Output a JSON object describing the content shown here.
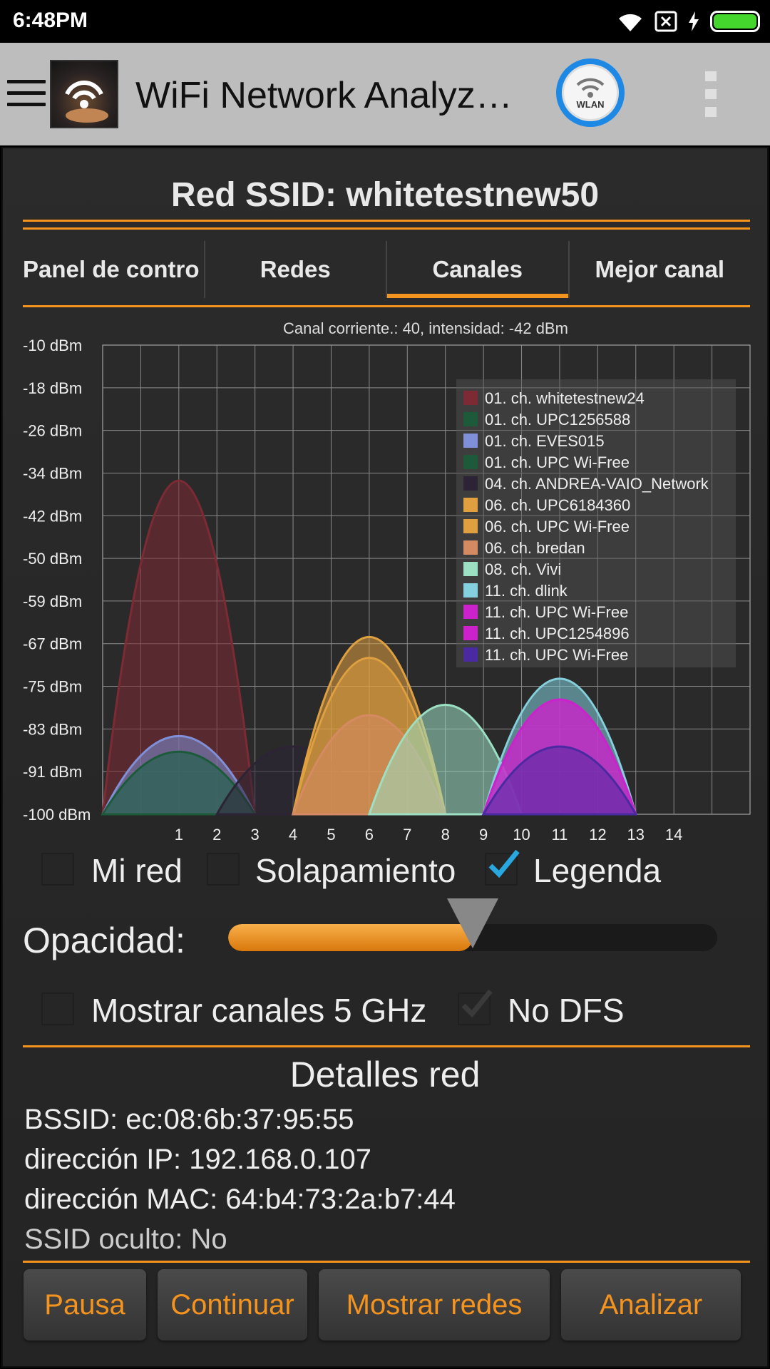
{
  "status_bar": {
    "time": "6:48PM"
  },
  "app_bar": {
    "title": "WiFi Network Analyz…",
    "wlan_label": "WLAN"
  },
  "network": {
    "ssid_title": "Red SSID: whitetestnew50"
  },
  "tabs": [
    {
      "label": "Panel de contro",
      "active": false
    },
    {
      "label": "Redes",
      "active": false
    },
    {
      "label": "Canales",
      "active": true
    },
    {
      "label": "Mejor canal",
      "active": false
    }
  ],
  "chart_data": {
    "type": "area",
    "title": "Canal corriente.: 40, intensidad: -42 dBm",
    "y_labels": [
      "-10 dBm",
      "-18 dBm",
      "-26 dBm",
      "-34 dBm",
      "-42 dBm",
      "-50 dBm",
      "-59 dBm",
      "-67 dBm",
      "-75 dBm",
      "-83 dBm",
      "-91 dBm",
      "-100 dBm"
    ],
    "x_labels": [
      "1",
      "2",
      "3",
      "4",
      "5",
      "6",
      "7",
      "8",
      "9",
      "10",
      "11",
      "12",
      "13",
      "14"
    ],
    "ylim": [
      -100,
      -10
    ],
    "x_range": [
      -1,
      16
    ],
    "grid": true,
    "legend_position": "top-right",
    "series": [
      {
        "name": "01. ch. whitetestnew24",
        "channel": 1,
        "dbm": -36,
        "color": "#7d2a35"
      },
      {
        "name": "01. ch. UPC1256588",
        "channel": 1,
        "dbm": -88,
        "color": "#1d5a3a"
      },
      {
        "name": "01. ch. EVES015",
        "channel": 1,
        "dbm": -85,
        "color": "#7f8fd8"
      },
      {
        "name": "01. ch. UPC Wi-Free",
        "channel": 1,
        "dbm": -88,
        "color": "#1d5a3a"
      },
      {
        "name": "04. ch. ANDREA-VAIO_Network",
        "channel": 4,
        "dbm": -87,
        "color": "#2c2435"
      },
      {
        "name": "06. ch. UPC6184360",
        "channel": 6,
        "dbm": -66,
        "color": "#e0a040"
      },
      {
        "name": "06. ch. UPC Wi-Free",
        "channel": 6,
        "dbm": -70,
        "color": "#e0a040"
      },
      {
        "name": "06. ch. bredan",
        "channel": 6,
        "dbm": -81,
        "color": "#d58a62"
      },
      {
        "name": "08. ch. Vivi",
        "channel": 8,
        "dbm": -79,
        "color": "#9ce0c4"
      },
      {
        "name": "11. ch. dlink",
        "channel": 11,
        "dbm": -74,
        "color": "#84d0dc"
      },
      {
        "name": "11. ch. UPC Wi-Free",
        "channel": 11,
        "dbm": -78,
        "color": "#cc22cc"
      },
      {
        "name": "11. ch. UPC1254896",
        "channel": 11,
        "dbm": -78,
        "color": "#cc22cc"
      },
      {
        "name": "11. ch. UPC Wi-Free",
        "channel": 11,
        "dbm": -87,
        "color": "#4a2aa0"
      }
    ]
  },
  "options": {
    "mi_red": {
      "label": "Mi red",
      "checked": false
    },
    "solapamiento": {
      "label": "Solapamiento",
      "checked": false
    },
    "legenda": {
      "label": "Legenda",
      "checked": true
    },
    "opacidad_label": "Opacidad:",
    "opacidad_value": 0.5,
    "mostrar_5ghz": {
      "label": "Mostrar canales 5 GHz",
      "checked": false
    },
    "no_dfs": {
      "label": "No DFS",
      "checked": true
    }
  },
  "details": {
    "title": "Detalles red",
    "bssid": "BSSID: ec:08:6b:37:95:55",
    "ip": "dirección IP: 192.168.0.107",
    "mac": "dirección MAC: 64:b4:73:2a:b7:44",
    "hidden": "SSID oculto: No"
  },
  "buttons": {
    "pause": "Pausa",
    "continue": "Continuar",
    "show_networks": "Mostrar redes",
    "analyze": "Analizar"
  },
  "colors": {
    "accent": "#f4931e",
    "check_blue": "#29a8e0"
  }
}
